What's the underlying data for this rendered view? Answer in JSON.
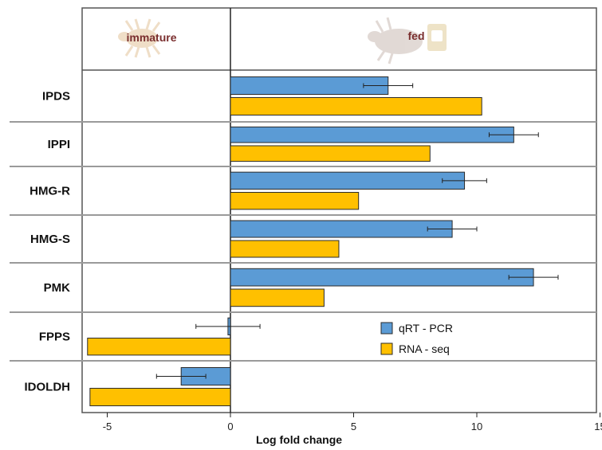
{
  "chart_data": {
    "type": "bar",
    "orientation": "horizontal",
    "xlabel": "Log fold change",
    "xlim": [
      -6,
      15
    ],
    "xticks": [
      -5,
      0,
      5,
      10,
      15
    ],
    "header_labels": {
      "left": "immature",
      "right": "fed"
    },
    "categories": [
      "IPDS",
      "IPPI",
      "HMG-R",
      "HMG-S",
      "PMK",
      "FPPS",
      "IDOLDH"
    ],
    "series": [
      {
        "name": "qRT - PCR",
        "color": "#5b9bd5",
        "values": [
          6.4,
          11.5,
          9.5,
          9.0,
          12.3,
          -0.1,
          -2.0
        ],
        "error": [
          1.0,
          1.0,
          0.9,
          1.0,
          1.0,
          1.3,
          1.0
        ]
      },
      {
        "name": "RNA - seq",
        "color": "#ffc000",
        "values": [
          10.2,
          8.1,
          5.2,
          4.4,
          3.8,
          -5.8,
          -5.7
        ]
      }
    ],
    "legend_position": "bottom-right",
    "grid": false
  },
  "icons": {
    "left_header": "tick-icon",
    "right_header": [
      "engorged-tick-icon",
      "blood-bag-icon"
    ]
  }
}
